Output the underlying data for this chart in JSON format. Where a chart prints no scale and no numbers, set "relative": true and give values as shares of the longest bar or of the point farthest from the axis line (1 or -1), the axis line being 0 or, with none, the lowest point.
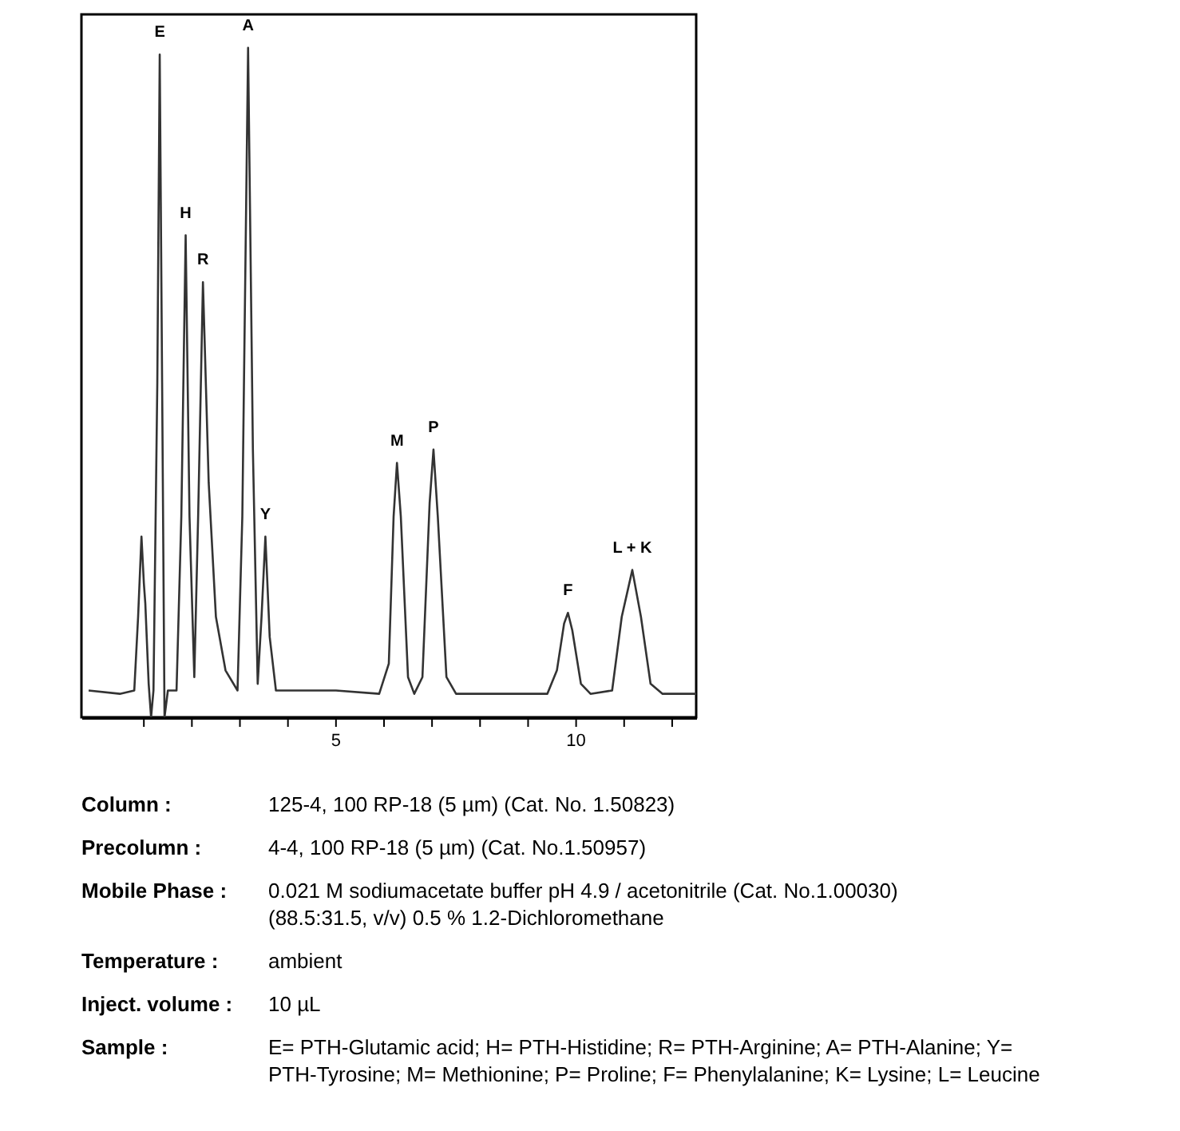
{
  "chart_data": {
    "type": "line",
    "relative": true,
    "series": [
      {
        "color": "#333333",
        "x": [
          -0.15,
          0.5,
          0.8,
          0.88,
          0.95,
          1.0,
          1.03,
          1.1,
          1.15,
          1.2,
          1.28,
          1.33,
          1.38,
          1.43,
          1.5,
          1.68,
          1.78,
          1.87,
          1.95,
          2.05,
          2.13,
          2.23,
          2.35,
          2.5,
          2.7,
          2.95,
          3.05,
          3.17,
          3.27,
          3.37,
          3.45,
          3.53,
          3.62,
          3.75,
          5.0,
          5.9,
          6.1,
          6.2,
          6.27,
          6.35,
          6.5,
          6.63,
          6.8,
          6.95,
          7.03,
          7.12,
          7.3,
          7.5,
          9.4,
          9.6,
          9.75,
          9.83,
          9.92,
          10.1,
          10.3,
          10.75,
          10.95,
          11.17,
          11.35,
          11.55,
          11.8,
          12.5
        ],
        "values": [
          0.04,
          0.035,
          0.04,
          0.15,
          0.27,
          0.2,
          0.17,
          0.05,
          0.0,
          0.04,
          0.5,
          0.99,
          0.5,
          0.0,
          0.04,
          0.04,
          0.3,
          0.72,
          0.3,
          0.06,
          0.3,
          0.65,
          0.35,
          0.15,
          0.07,
          0.04,
          0.3,
          1.0,
          0.4,
          0.05,
          0.15,
          0.27,
          0.12,
          0.04,
          0.04,
          0.035,
          0.08,
          0.3,
          0.38,
          0.3,
          0.06,
          0.035,
          0.06,
          0.32,
          0.4,
          0.3,
          0.06,
          0.035,
          0.035,
          0.07,
          0.14,
          0.156,
          0.13,
          0.05,
          0.035,
          0.04,
          0.15,
          0.22,
          0.15,
          0.05,
          0.035,
          0.035
        ]
      }
    ],
    "xlim": [
      -0.3,
      12.5
    ],
    "xticks": [
      {
        "value": 1,
        "label": null
      },
      {
        "value": 2,
        "label": null
      },
      {
        "value": 3,
        "label": null
      },
      {
        "value": 4,
        "label": null
      },
      5,
      {
        "value": 6,
        "label": null
      },
      {
        "value": 7,
        "label": null
      },
      {
        "value": 8,
        "label": null
      },
      {
        "value": 9,
        "label": null
      },
      10,
      {
        "value": 11,
        "label": null
      },
      {
        "value": 12,
        "label": null
      }
    ],
    "grid": false,
    "marker": "none",
    "line_style": "solid",
    "annotations": [
      {
        "text": "E",
        "x": 1.33,
        "y": 0.99
      },
      {
        "text": "H",
        "x": 1.87,
        "y": 0.72
      },
      {
        "text": "R",
        "x": 2.23,
        "y": 0.65
      },
      {
        "text": "A",
        "x": 3.17,
        "y": 1.0
      },
      {
        "text": "Y",
        "x": 3.53,
        "y": 0.27
      },
      {
        "text": "M",
        "x": 6.27,
        "y": 0.38
      },
      {
        "text": "P",
        "x": 7.03,
        "y": 0.4
      },
      {
        "text": "F",
        "x": 9.83,
        "y": 0.156
      },
      {
        "text": "L + K",
        "x": 11.17,
        "y": 0.22
      },
      "Column :",
      "125-4, 100 RP-18 (5 µm)  (Cat. No. 1.50823)",
      "Precolumn :",
      "4-4, 100 RP-18 (5 µm)  (Cat. No.1.50957)",
      "Mobile Phase :",
      "0.021 M sodiumacetate buffer pH 4.9 / acetonitrile (Cat. No.1.00030)\n(88.5:31.5, v/v) 0.5 % 1.2-Dichloromethane",
      "Temperature :",
      "ambient",
      "Inject. volume :",
      "10 µL",
      "Sample :",
      "E= PTH-Glutamic acid; H= PTH-Histidine; R= PTH-Arginine; A= PTH-Alanine; Y=\nPTH-Tyrosine; M= Methionine; P= Proline; F= Phenylalanine; K= Lysine; L= Leucine"
    ]
  }
}
